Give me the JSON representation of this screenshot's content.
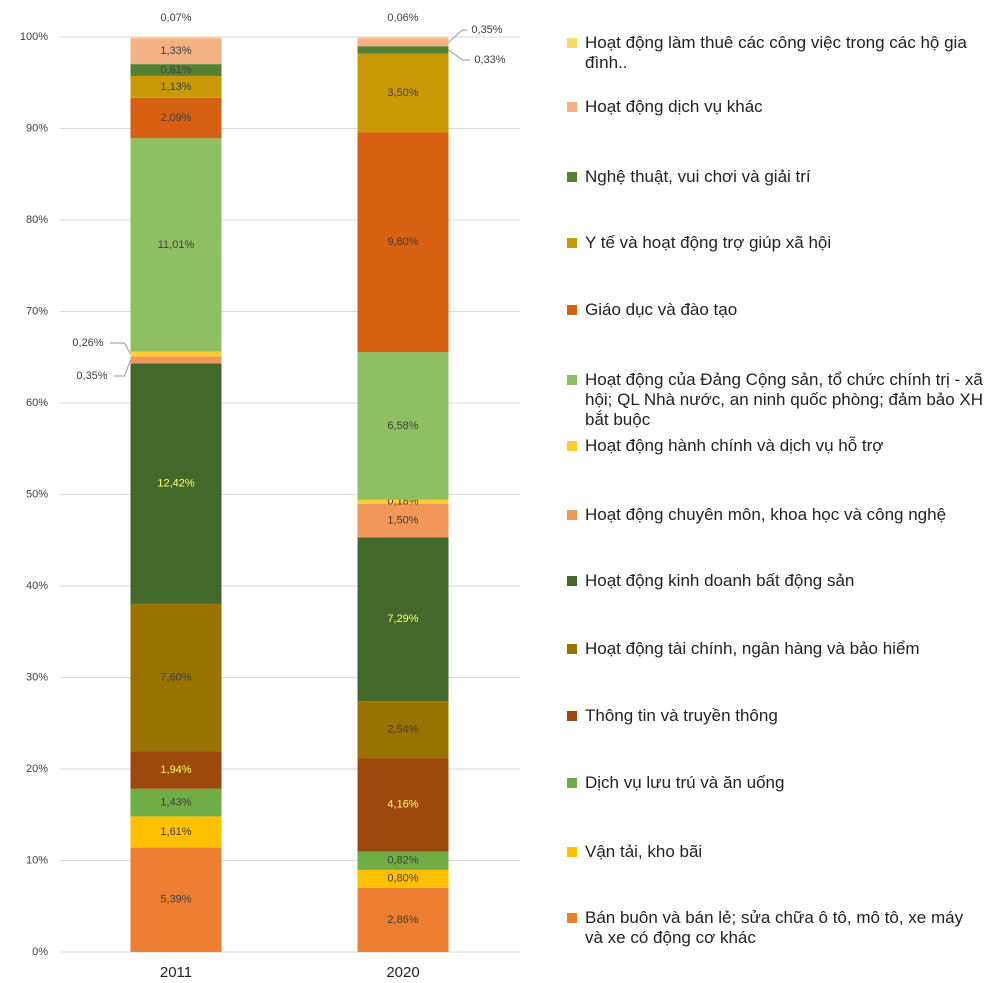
{
  "chart_data": {
    "type": "bar",
    "stacking": "percent",
    "categories": [
      "2011",
      "2020"
    ],
    "ylim": [
      0,
      100
    ],
    "yticks": [
      {
        "value": 0,
        "label": "0%"
      },
      {
        "value": 10,
        "label": "10%"
      },
      {
        "value": 20,
        "label": "20%"
      },
      {
        "value": 30,
        "label": "30%"
      },
      {
        "value": 40,
        "label": "40%"
      },
      {
        "value": 50,
        "label": "50%"
      },
      {
        "value": 60,
        "label": "60%"
      },
      {
        "value": 70,
        "label": "70%"
      },
      {
        "value": 80,
        "label": "80%"
      },
      {
        "value": 90,
        "label": "90%"
      },
      {
        "value": 100,
        "label": "100%"
      }
    ],
    "grid": true,
    "legend": "right",
    "series": [
      {
        "name": "Bán buôn và bán lẻ; sửa chữa ô tô, mô tô, xe máy và xe có động cơ khác",
        "color": "#ED7D31",
        "values": [
          5.39,
          2.86
        ],
        "value_labels": [
          "5,39%",
          "2,86%"
        ]
      },
      {
        "name": "Vận tải, kho bãi",
        "color": "#FFC000",
        "values": [
          1.61,
          0.8
        ],
        "value_labels": [
          "1,61%",
          "0,80%"
        ]
      },
      {
        "name": "Dịch vụ lưu trú và ăn uống",
        "color": "#70AD47",
        "values": [
          1.43,
          0.82
        ],
        "value_labels": [
          "1,43%",
          "0,82%"
        ]
      },
      {
        "name": "Thông tin và truyền thông",
        "color": "#9E480E",
        "values": [
          1.94,
          4.16
        ],
        "value_labels": [
          "1,94%",
          "4,16%"
        ]
      },
      {
        "name": "Hoạt động tài chính, ngân hàng và bảo hiểm",
        "color": "#997300",
        "values": [
          7.6,
          2.54
        ],
        "value_labels": [
          "7,60%",
          "2,54%"
        ]
      },
      {
        "name": "Hoạt động kinh doanh bất động sản",
        "color": "#43682B",
        "values": [
          12.42,
          7.29
        ],
        "value_labels": [
          "12,42%",
          "7,29%"
        ]
      },
      {
        "name": "Hoạt động chuyên môn, khoa học và công nghệ",
        "color": "#F1975A",
        "values": [
          0.35,
          1.5
        ],
        "value_labels": [
          "0,35%",
          "1,50%"
        ]
      },
      {
        "name": "Hoạt động hành chính và dịch vụ hỗ trợ",
        "color": "#FFCD33",
        "values": [
          0.26,
          0.18
        ],
        "value_labels": [
          "0,26%",
          "0,18%"
        ]
      },
      {
        "name": "Hoạt động của Đảng Cộng sản, tổ chức chính trị - xã hội; QL Nhà nước, an ninh quốc phòng; đảm bảo XH bắt buộc",
        "color": "#8FBF63",
        "values": [
          11.01,
          6.58
        ],
        "value_labels": [
          "11,01%",
          "6,58%"
        ]
      },
      {
        "name": "Giáo dục và đào tạo",
        "color": "#D86012",
        "values": [
          2.09,
          9.8
        ],
        "value_labels": [
          "2,09%",
          "9,80%"
        ]
      },
      {
        "name": "Y tế và hoạt động trợ giúp xã hội",
        "color": "#C99A06",
        "values": [
          1.13,
          3.5
        ],
        "value_labels": [
          "1,13%",
          "3,50%"
        ]
      },
      {
        "name": "Nghệ thuật, vui chơi và giải trí",
        "color": "#548235",
        "values": [
          0.61,
          0.33
        ],
        "value_labels": [
          "0,61%",
          "0,33%"
        ]
      },
      {
        "name": "Hoạt động dịch vụ khác",
        "color": "#F4B183",
        "values": [
          1.33,
          0.35
        ],
        "value_labels": [
          "1,33%",
          "0,35%"
        ]
      },
      {
        "name": "Hoạt động làm thuê các công việc trong các hộ gia đình..",
        "color": "#FFD966",
        "values": [
          0.07,
          0.06
        ],
        "value_labels": [
          "0,07%",
          "0,06%"
        ]
      }
    ]
  }
}
